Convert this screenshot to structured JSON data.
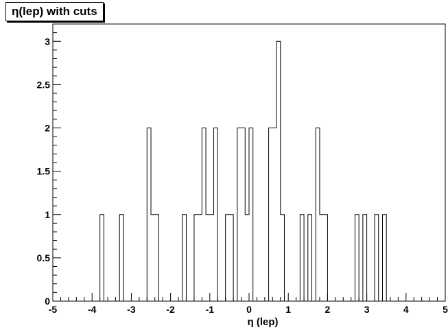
{
  "chart_data": {
    "type": "bar",
    "histogram": true,
    "title": "η(lep) with cuts",
    "xlabel": "η (lep)",
    "ylabel": "",
    "xlim": [
      -5,
      5
    ],
    "ylim": [
      0,
      3.2
    ],
    "grid": false,
    "legend": "none",
    "bin_width": 0.1,
    "x_ticks": [
      "-5",
      "-4",
      "-3",
      "-2",
      "-1",
      "0",
      "1",
      "2",
      "3",
      "4",
      "5"
    ],
    "y_ticks": [
      "0",
      "0.5",
      "1",
      "1.5",
      "2",
      "2.5",
      "3"
    ],
    "bins": [
      {
        "x": -3.8,
        "value": 1
      },
      {
        "x": -3.3,
        "value": 1
      },
      {
        "x": -2.6,
        "value": 2
      },
      {
        "x": -2.5,
        "value": 1
      },
      {
        "x": -2.4,
        "value": 1
      },
      {
        "x": -1.7,
        "value": 1
      },
      {
        "x": -1.4,
        "value": 1
      },
      {
        "x": -1.3,
        "value": 1
      },
      {
        "x": -1.2,
        "value": 2
      },
      {
        "x": -1.1,
        "value": 1
      },
      {
        "x": -1.0,
        "value": 1
      },
      {
        "x": -0.9,
        "value": 2
      },
      {
        "x": -0.6,
        "value": 1
      },
      {
        "x": -0.5,
        "value": 1
      },
      {
        "x": -0.3,
        "value": 2
      },
      {
        "x": -0.2,
        "value": 2
      },
      {
        "x": -0.1,
        "value": 1
      },
      {
        "x": 0.0,
        "value": 2
      },
      {
        "x": 0.5,
        "value": 2
      },
      {
        "x": 0.6,
        "value": 2
      },
      {
        "x": 0.7,
        "value": 3
      },
      {
        "x": 0.8,
        "value": 1
      },
      {
        "x": 1.3,
        "value": 1
      },
      {
        "x": 1.5,
        "value": 1
      },
      {
        "x": 1.7,
        "value": 2
      },
      {
        "x": 1.8,
        "value": 1
      },
      {
        "x": 1.9,
        "value": 1
      },
      {
        "x": 2.7,
        "value": 1
      },
      {
        "x": 2.9,
        "value": 1
      },
      {
        "x": 3.2,
        "value": 1
      },
      {
        "x": 3.4,
        "value": 1
      }
    ],
    "colors": {
      "line": "#000000",
      "background": "#ffffff"
    }
  }
}
